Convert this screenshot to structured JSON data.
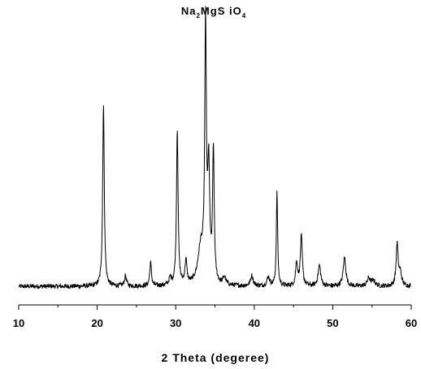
{
  "chart_data": {
    "type": "line",
    "title": {
      "parts": [
        {
          "text": "Na",
          "sub": false
        },
        {
          "text": "2",
          "sub": true
        },
        {
          "text": "MgS iO",
          "sub": false
        },
        {
          "text": "4",
          "sub": true
        }
      ]
    },
    "xlabel": "2 Theta (degeree)",
    "ylabel": "",
    "xlim": [
      10,
      60
    ],
    "ylim": [
      0,
      100
    ],
    "x_ticks": [
      10,
      20,
      30,
      40,
      50,
      60
    ],
    "x_tick_labels": [
      "10",
      "20",
      "30",
      "40",
      "50",
      "60"
    ],
    "y_axis_visible": false,
    "grid": false,
    "legend": "none",
    "line_color": "#000000",
    "baseline": 1.5,
    "noise_amplitude": 0.9,
    "peaks": [
      {
        "x": 20.8,
        "height": 70,
        "width": 0.12
      },
      {
        "x": 23.6,
        "height": 4,
        "width": 0.15
      },
      {
        "x": 26.8,
        "height": 9,
        "width": 0.13
      },
      {
        "x": 29.3,
        "height": 2.5,
        "width": 0.2
      },
      {
        "x": 30.2,
        "height": 60,
        "width": 0.12
      },
      {
        "x": 31.3,
        "height": 9,
        "width": 0.15
      },
      {
        "x": 33.2,
        "height": 14,
        "width": 0.45
      },
      {
        "x": 33.8,
        "height": 96,
        "width": 0.12
      },
      {
        "x": 34.2,
        "height": 42,
        "width": 0.15
      },
      {
        "x": 34.8,
        "height": 51,
        "width": 0.12
      },
      {
        "x": 36.2,
        "height": 3,
        "width": 0.2
      },
      {
        "x": 39.7,
        "height": 4,
        "width": 0.2
      },
      {
        "x": 41.8,
        "height": 3.5,
        "width": 0.2
      },
      {
        "x": 42.9,
        "height": 36,
        "width": 0.1
      },
      {
        "x": 45.4,
        "height": 9,
        "width": 0.15
      },
      {
        "x": 46.0,
        "height": 19,
        "width": 0.15
      },
      {
        "x": 48.3,
        "height": 8,
        "width": 0.2
      },
      {
        "x": 51.5,
        "height": 11,
        "width": 0.2
      },
      {
        "x": 54.6,
        "height": 3,
        "width": 0.25
      },
      {
        "x": 55.2,
        "height": 2,
        "width": 0.25
      },
      {
        "x": 58.2,
        "height": 16,
        "width": 0.15
      },
      {
        "x": 58.6,
        "height": 5,
        "width": 0.2
      }
    ]
  }
}
